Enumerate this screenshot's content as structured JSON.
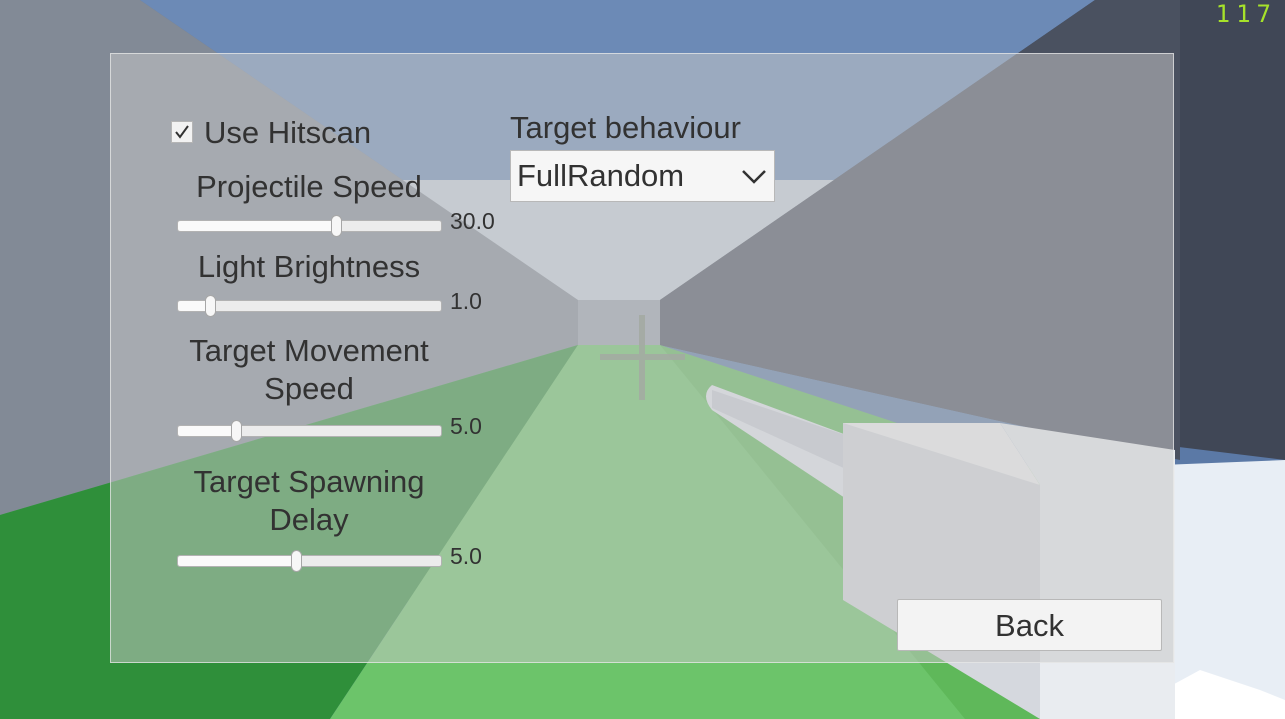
{
  "hud": {
    "fps": "117"
  },
  "settings": {
    "use_hitscan": {
      "label": "Use Hitscan",
      "checked": true
    },
    "target_behaviour": {
      "label": "Target behaviour",
      "selected": "FullRandom"
    },
    "sliders": [
      {
        "label": "Projectile Speed",
        "value_text": "30.0",
        "fraction": 0.6
      },
      {
        "label": "Light Brightness",
        "value_text": "1.0",
        "fraction": 0.12
      },
      {
        "label": "Target Movement Speed",
        "value_text": "5.0",
        "fraction": 0.22
      },
      {
        "label": "Target Spawning Delay",
        "value_text": "5.0",
        "fraction": 0.45
      }
    ],
    "back_label": "Back"
  }
}
